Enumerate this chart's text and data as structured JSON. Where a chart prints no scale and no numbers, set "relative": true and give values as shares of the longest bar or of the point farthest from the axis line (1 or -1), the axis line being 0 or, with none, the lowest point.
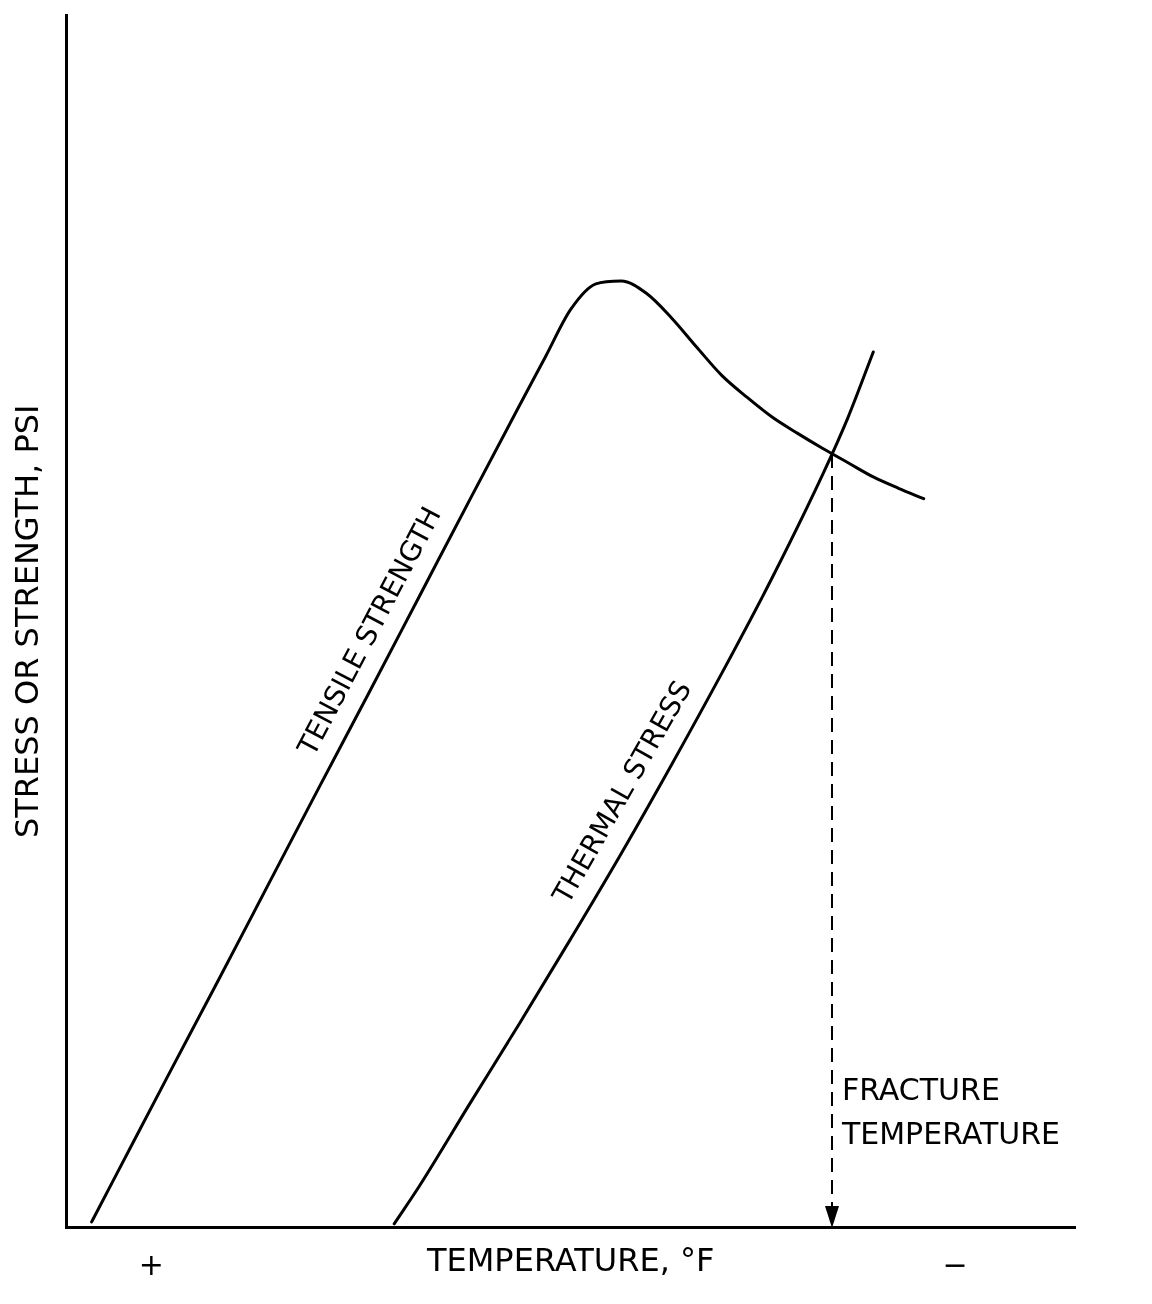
{
  "chart_data": {
    "type": "line",
    "xlabel": "TEMPERATURE, °F",
    "ylabel": "STRESS OR STRENGTH, PSI",
    "relative": true,
    "grid": false,
    "legend": false,
    "marker": "none",
    "line_style": "solid",
    "categories": [
      null,
      null,
      null,
      null,
      null,
      null,
      null,
      null,
      null,
      null,
      null,
      null,
      null,
      null,
      null,
      null,
      null,
      null,
      null,
      null,
      null,
      null,
      null,
      null,
      null,
      null,
      null,
      null,
      null,
      null,
      null,
      null,
      null,
      null,
      null,
      null,
      null,
      null,
      null,
      null,
      null
    ],
    "series": [
      {
        "name": "TENSILE STRENGTH",
        "color": "#000000",
        "values": [
          null,
          0.006,
          0.057,
          null,
          0.159,
          null,
          0.26,
          null,
          0.362,
          null,
          0.464,
          null,
          0.565,
          null,
          0.667,
          null,
          0.769,
          null,
          0.87,
          0.92,
          0.97,
          0.997,
          1,
          0.987,
          0.961,
          0.93,
          0.9,
          0.877,
          0.856,
          0.839,
          0.823,
          0.808,
          0.793,
          0.781,
          0.77,
          null,
          null,
          null,
          null,
          null,
          null
        ]
      },
      {
        "name": "THERMAL STRESS",
        "color": "#000000",
        "values": [
          null,
          null,
          null,
          null,
          null,
          null,
          null,
          null,
          null,
          null,
          null,
          null,
          null,
          0.004,
          0.044,
          null,
          0.131,
          null,
          0.217,
          null,
          0.305,
          null,
          0.395,
          null,
          0.489,
          null,
          0.586,
          null,
          0.687,
          null,
          0.796,
          0.856,
          0.925,
          null,
          null,
          null,
          null,
          null,
          null,
          null,
          null
        ]
      }
    ],
    "annotations": [
      "FRACTURE TEMPERATURE",
      "+",
      "−"
    ]
  }
}
